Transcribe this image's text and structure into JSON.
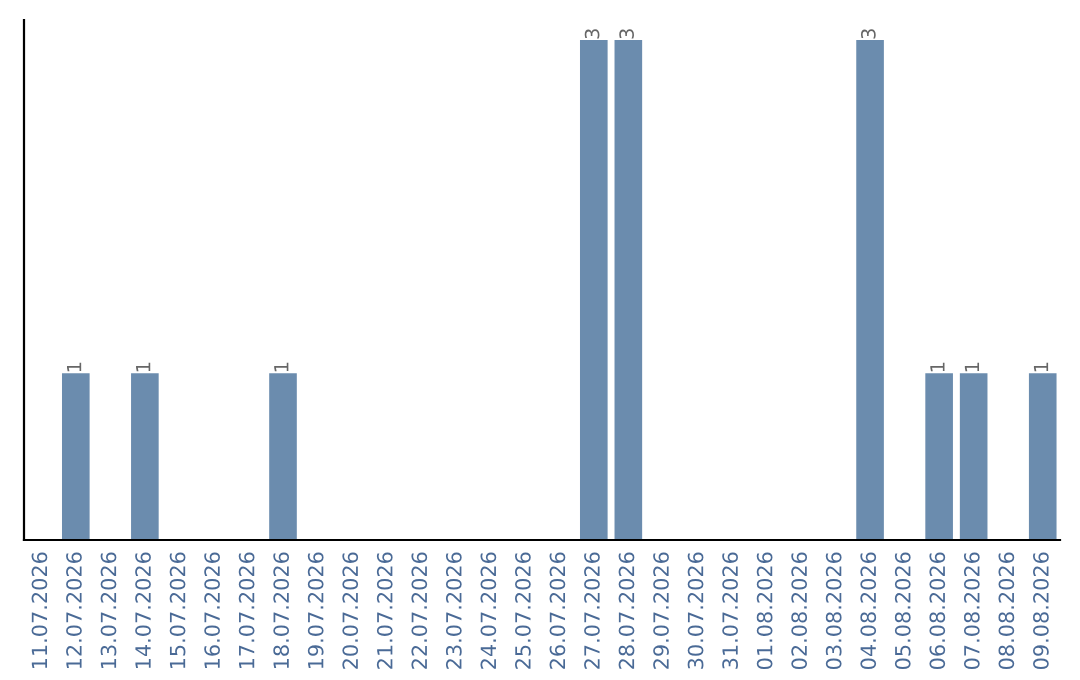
{
  "chart_data": {
    "type": "bar",
    "categories": [
      "11.07.2026",
      "12.07.2026",
      "13.07.2026",
      "14.07.2026",
      "15.07.2026",
      "16.07.2026",
      "17.07.2026",
      "18.07.2026",
      "19.07.2026",
      "20.07.2026",
      "21.07.2026",
      "22.07.2026",
      "23.07.2026",
      "24.07.2026",
      "25.07.2026",
      "26.07.2026",
      "27.07.2026",
      "28.07.2026",
      "29.07.2026",
      "30.07.2026",
      "31.07.2026",
      "01.08.2026",
      "02.08.2026",
      "03.08.2026",
      "04.08.2026",
      "05.08.2026",
      "06.08.2026",
      "07.08.2026",
      "08.08.2026",
      "09.08.2026"
    ],
    "values": [
      0,
      1,
      0,
      1,
      0,
      0,
      0,
      1,
      0,
      0,
      0,
      0,
      0,
      0,
      0,
      0,
      3,
      3,
      0,
      0,
      0,
      0,
      0,
      0,
      3,
      0,
      1,
      1,
      0,
      1
    ],
    "value_labels": [
      null,
      "1",
      null,
      "1",
      null,
      null,
      null,
      "1",
      null,
      null,
      null,
      null,
      null,
      null,
      null,
      null,
      "3",
      "3",
      null,
      null,
      null,
      null,
      null,
      null,
      "3",
      null,
      "1",
      "1",
      null,
      "1"
    ],
    "color": "#6b8cae",
    "tick_labels": "x",
    "grid": false,
    "legend": false
  }
}
